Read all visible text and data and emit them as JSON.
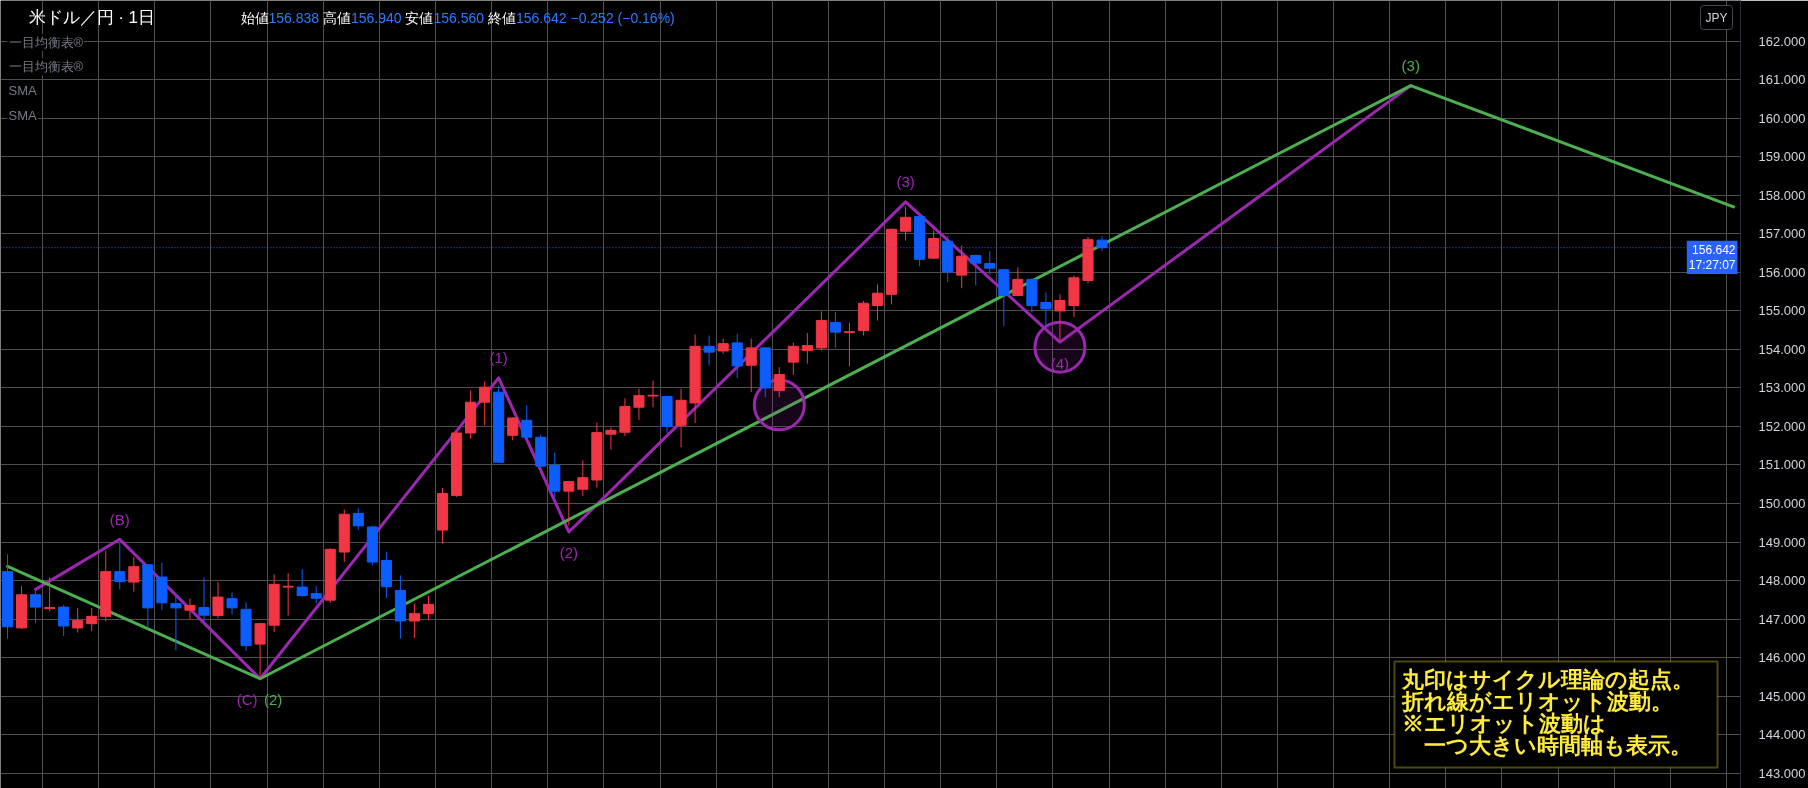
{
  "chart_data": {
    "type": "candlestick",
    "title": "米ドル／円 · 1日",
    "subtitle": "始値156.838 高値156.940 安値156.560 終値156.642 −0.252 (−0.16%)",
    "annotations": [
      "一目均衡表®",
      "一目均衡表®",
      "SMA",
      "SMA",
      "JPY",
      "丸印はサイクル理論の起点。",
      "折れ線がエリオット波動。",
      "※エリオット波動は",
      "　一つ大きい時間軸も表示。",
      {
        "text": "(B)",
        "y": 149.07
      },
      {
        "text": "(C)",
        "y": 145.45
      },
      {
        "text": "(1)",
        "y": 153.26
      },
      {
        "text": "(2)",
        "y": 149.26
      },
      {
        "text": "(3)",
        "y": 157.83
      },
      {
        "text": "(4)",
        "y": 154.19
      },
      {
        "text": "(2)",
        "y": 145.45
      },
      {
        "text": "(3)",
        "y": 160.85
      }
    ],
    "categories": [
      null,
      null,
      null,
      null,
      null,
      null,
      null,
      null,
      null,
      null,
      null,
      null,
      null,
      null,
      null,
      null,
      null,
      null,
      null,
      null,
      null,
      null,
      null,
      null,
      null,
      null,
      null,
      null,
      null,
      null,
      null,
      null,
      null,
      null,
      null,
      null,
      null,
      null,
      null,
      null,
      null,
      null,
      null,
      null,
      null,
      null,
      null,
      null,
      null,
      null,
      null,
      null,
      null,
      null,
      null,
      null,
      null,
      null,
      null,
      null,
      null,
      null,
      null,
      null,
      null,
      null,
      null,
      null,
      null,
      null,
      null,
      null,
      null,
      null,
      null,
      null,
      null,
      null,
      null,
      null,
      null,
      null,
      null,
      null,
      null,
      null,
      null,
      null,
      null,
      null,
      null,
      null,
      null,
      null,
      null,
      null,
      null,
      null,
      null,
      null,
      null,
      null,
      null,
      null,
      null,
      null,
      null,
      null,
      null,
      null,
      null,
      null,
      null,
      null,
      null,
      null,
      null,
      null,
      null,
      null,
      null,
      null,
      null,
      null
    ],
    "ohlc": [
      [
        148.23,
        148.68,
        146.49,
        146.8
      ],
      [
        146.77,
        147.85,
        146.74,
        147.63
      ],
      [
        147.63,
        147.75,
        146.89,
        147.31
      ],
      [
        147.27,
        148.08,
        147.2,
        147.3
      ],
      [
        147.31,
        147.37,
        146.56,
        146.82
      ],
      [
        146.77,
        147.29,
        146.65,
        146.96
      ],
      [
        146.88,
        147.29,
        146.69,
        147.07
      ],
      [
        147.07,
        148.77,
        146.94,
        148.23
      ],
      [
        148.23,
        148.98,
        147.77,
        147.97
      ],
      [
        147.96,
        148.61,
        147.71,
        148.36
      ],
      [
        148.41,
        148.43,
        146.75,
        147.29
      ],
      [
        148.09,
        148.46,
        147.24,
        147.42
      ],
      [
        147.4,
        147.65,
        146.19,
        147.29
      ],
      [
        147.23,
        147.53,
        147.0,
        147.35
      ],
      [
        147.3,
        148.08,
        146.91,
        147.1
      ],
      [
        147.09,
        147.96,
        147.02,
        147.57
      ],
      [
        147.53,
        147.69,
        147.12,
        147.29
      ],
      [
        147.25,
        147.43,
        146.17,
        146.31
      ],
      [
        146.35,
        146.9,
        145.45,
        146.88
      ],
      [
        146.84,
        148.16,
        146.66,
        147.9
      ],
      [
        147.83,
        148.19,
        147.09,
        147.85
      ],
      [
        147.83,
        148.29,
        147.58,
        147.61
      ],
      [
        147.66,
        147.85,
        147.4,
        147.54
      ],
      [
        147.49,
        148.84,
        147.42,
        148.81
      ],
      [
        148.74,
        149.84,
        148.48,
        149.72
      ],
      [
        149.74,
        149.87,
        149.32,
        149.42
      ],
      [
        149.39,
        149.42,
        148.39,
        148.48
      ],
      [
        148.52,
        148.75,
        147.55,
        147.84
      ],
      [
        147.74,
        148.13,
        146.49,
        146.95
      ],
      [
        146.95,
        147.4,
        146.51,
        147.14
      ],
      [
        147.14,
        147.6,
        146.97,
        147.38
      ],
      [
        149.31,
        150.4,
        148.96,
        150.26
      ],
      [
        150.21,
        151.85,
        150.17,
        151.83
      ],
      [
        151.83,
        152.94,
        151.68,
        152.63
      ],
      [
        152.63,
        153.17,
        152.03,
        153.02
      ],
      [
        152.89,
        153.07,
        151.05,
        151.07
      ],
      [
        151.77,
        152.24,
        151.64,
        152.22
      ],
      [
        152.16,
        152.55,
        151.7,
        151.72
      ],
      [
        151.72,
        151.79,
        150.95,
        150.97
      ],
      [
        150.99,
        151.32,
        150.16,
        150.32
      ],
      [
        150.32,
        150.59,
        149.43,
        150.57
      ],
      [
        150.37,
        151.12,
        150.19,
        150.67
      ],
      [
        150.61,
        152.1,
        150.41,
        151.84
      ],
      [
        151.8,
        151.97,
        151.4,
        151.9
      ],
      [
        151.85,
        152.73,
        151.75,
        152.52
      ],
      [
        152.5,
        152.98,
        152.17,
        152.8
      ],
      [
        152.79,
        153.19,
        152.5,
        152.81
      ],
      [
        152.78,
        152.8,
        151.83,
        152.0
      ],
      [
        152.03,
        152.98,
        151.46,
        152.68
      ],
      [
        152.61,
        154.39,
        152.09,
        154.08
      ],
      [
        154.08,
        154.36,
        153.58,
        153.93
      ],
      [
        153.96,
        154.28,
        153.89,
        154.15
      ],
      [
        154.17,
        154.41,
        153.26,
        153.57
      ],
      [
        153.59,
        154.28,
        152.89,
        154.04
      ],
      [
        154.04,
        154.06,
        152.76,
        153.0
      ],
      [
        152.93,
        153.54,
        152.76,
        153.35
      ],
      [
        153.67,
        154.18,
        153.34,
        154.08
      ],
      [
        153.97,
        154.43,
        153.63,
        154.1
      ],
      [
        154.04,
        154.99,
        153.97,
        154.75
      ],
      [
        154.7,
        154.97,
        154.04,
        154.45
      ],
      [
        154.44,
        154.69,
        153.56,
        154.46
      ],
      [
        154.49,
        155.26,
        154.36,
        155.2
      ],
      [
        155.14,
        155.69,
        154.75,
        155.46
      ],
      [
        155.43,
        157.14,
        155.17,
        157.12
      ],
      [
        157.07,
        157.71,
        156.83,
        157.43
      ],
      [
        157.45,
        157.47,
        156.16,
        156.34
      ],
      [
        156.37,
        157.09,
        156.35,
        156.88
      ],
      [
        156.81,
        156.94,
        155.75,
        156.01
      ],
      [
        155.93,
        156.7,
        155.59,
        156.42
      ],
      [
        156.44,
        156.46,
        155.66,
        156.24
      ],
      [
        156.23,
        156.55,
        155.94,
        156.11
      ],
      [
        156.07,
        156.09,
        154.6,
        155.4
      ],
      [
        155.4,
        156.13,
        155.38,
        155.82
      ],
      [
        155.82,
        155.84,
        154.96,
        155.14
      ],
      [
        155.22,
        155.48,
        154.58,
        155.05
      ],
      [
        155.0,
        155.43,
        154.23,
        155.27
      ],
      [
        155.14,
        155.92,
        154.84,
        155.86
      ],
      [
        155.79,
        156.92,
        155.71,
        156.85
      ],
      [
        156.838,
        156.94,
        156.56,
        156.642
      ],
      null,
      null,
      null,
      null,
      null,
      null,
      null,
      null,
      null,
      null,
      null,
      null,
      null,
      null,
      null,
      null,
      null,
      null,
      null,
      null,
      null,
      null,
      null,
      null,
      null,
      null,
      null,
      null,
      null,
      null,
      null,
      null,
      null,
      null,
      null,
      null,
      null,
      null,
      null,
      null,
      null,
      null,
      null,
      null,
      null
    ],
    "colors": [
      "#0d5eff",
      "#f23645",
      "#0d5eff",
      "#f23645",
      "#0d5eff",
      "#f23645",
      "#f23645",
      "#f23645",
      "#0d5eff",
      "#f23645",
      "#0d5eff",
      "#0d5eff",
      "#0d5eff",
      "#f23645",
      "#0d5eff",
      "#f23645",
      "#0d5eff",
      "#0d5eff",
      "#f23645",
      "#f23645",
      "#f23645",
      "#0d5eff",
      "#0d5eff",
      "#f23645",
      "#f23645",
      "#0d5eff",
      "#0d5eff",
      "#0d5eff",
      "#0d5eff",
      "#f23645",
      "#f23645",
      "#f23645",
      "#f23645",
      "#f23645",
      "#f23645",
      "#0d5eff",
      "#f23645",
      "#0d5eff",
      "#0d5eff",
      "#0d5eff",
      "#f23645",
      "#f23645",
      "#f23645",
      "#f23645",
      "#f23645",
      "#f23645",
      "#f23645",
      "#0d5eff",
      "#f23645",
      "#f23645",
      "#0d5eff",
      "#f23645",
      "#0d5eff",
      "#f23645",
      "#0d5eff",
      "#f23645",
      "#f23645",
      "#f23645",
      "#f23645",
      "#0d5eff",
      "#f23645",
      "#f23645",
      "#f23645",
      "#f23645",
      "#f23645",
      "#0d5eff",
      "#f23645",
      "#0d5eff",
      "#f23645",
      "#0d5eff",
      "#0d5eff",
      "#0d5eff",
      "#f23645",
      "#0d5eff",
      "#0d5eff",
      "#f23645",
      "#f23645",
      "#f23645",
      "#0d5eff",
      null,
      null,
      null,
      null,
      null,
      null,
      null,
      null,
      null,
      null,
      null,
      null,
      null,
      null,
      null,
      null,
      null,
      null,
      null,
      null,
      null,
      null,
      null,
      null,
      null,
      null,
      null,
      null,
      null,
      null,
      null,
      null,
      null,
      null,
      null,
      null,
      null,
      null,
      null,
      null,
      null,
      null,
      null,
      null,
      null
    ],
    "series": [
      {
        "type": "line",
        "color": "#9c27b0",
        "values": [
          null,
          null,
          147.77,
          null,
          null,
          null,
          null,
          null,
          149.07,
          null,
          null,
          null,
          null,
          null,
          null,
          null,
          null,
          null,
          145.45,
          null,
          null,
          null,
          null,
          null,
          null,
          null,
          null,
          null,
          null,
          null,
          null,
          null,
          null,
          null,
          null,
          153.26,
          null,
          null,
          null,
          null,
          149.26,
          null,
          null,
          null,
          null,
          null,
          null,
          null,
          null,
          null,
          null,
          null,
          null,
          null,
          null,
          null,
          null,
          null,
          null,
          null,
          null,
          null,
          null,
          null,
          157.83,
          null,
          null,
          null,
          null,
          null,
          null,
          null,
          null,
          null,
          null,
          154.19,
          null,
          null,
          null,
          null,
          null,
          null,
          null,
          null,
          null,
          null,
          null,
          null,
          null,
          null,
          null,
          null,
          null,
          null,
          null,
          null,
          null,
          null,
          null,
          null,
          160.85,
          null,
          null,
          null,
          null,
          null,
          null,
          null,
          null,
          null,
          null,
          null,
          null,
          null,
          null,
          null,
          null,
          null,
          null,
          null,
          null,
          null,
          null,
          null
        ]
      },
      {
        "type": "line",
        "color": "#4caf50",
        "values": [
          148.37,
          null,
          null,
          null,
          null,
          null,
          null,
          null,
          null,
          null,
          null,
          null,
          null,
          null,
          null,
          null,
          null,
          null,
          145.45,
          null,
          null,
          null,
          null,
          null,
          null,
          null,
          null,
          null,
          null,
          null,
          null,
          null,
          null,
          null,
          null,
          null,
          null,
          null,
          null,
          null,
          null,
          null,
          null,
          null,
          null,
          null,
          null,
          null,
          null,
          null,
          null,
          null,
          null,
          null,
          null,
          null,
          null,
          null,
          null,
          null,
          null,
          null,
          null,
          null,
          null,
          null,
          null,
          null,
          null,
          null,
          null,
          null,
          null,
          null,
          null,
          null,
          null,
          null,
          null,
          null,
          null,
          null,
          null,
          null,
          null,
          null,
          null,
          null,
          null,
          null,
          null,
          null,
          null,
          null,
          null,
          null,
          null,
          null,
          null,
          null,
          160.85,
          null,
          null,
          null,
          null,
          null,
          null,
          null,
          null,
          null,
          null,
          null,
          null,
          null,
          null,
          null,
          null,
          null,
          null,
          null,
          null,
          null,
          null,
          157.7
        ]
      },
      {
        "type": "scatter",
        "marker": "circle",
        "color": "#9c27b0",
        "values": [
          null,
          null,
          null,
          null,
          null,
          null,
          null,
          null,
          null,
          null,
          null,
          null,
          null,
          null,
          null,
          null,
          null,
          null,
          null,
          null,
          null,
          null,
          null,
          null,
          null,
          null,
          null,
          null,
          null,
          null,
          null,
          null,
          null,
          null,
          null,
          null,
          null,
          null,
          null,
          null,
          null,
          null,
          null,
          null,
          null,
          null,
          null,
          null,
          null,
          null,
          null,
          null,
          null,
          null,
          null,
          152.56,
          null,
          null,
          null,
          null,
          null,
          null,
          null,
          null,
          null,
          null,
          null,
          null,
          null,
          null,
          null,
          null,
          null,
          null,
          null,
          154.06,
          null,
          null,
          null,
          null,
          null,
          null,
          null,
          null,
          null,
          null,
          null,
          null,
          null,
          null,
          null,
          null,
          null,
          null,
          null,
          null,
          null,
          null,
          null,
          null,
          null,
          null,
          null,
          null,
          null,
          null,
          null,
          null,
          null,
          null,
          null,
          null,
          null,
          null,
          null,
          null,
          null,
          null,
          null,
          null,
          null,
          null,
          null,
          null
        ]
      }
    ],
    "ref_lines": [
      {
        "axis": "y",
        "value": 156.642,
        "label": "156.642\n17:27:07",
        "color": "#2962ff",
        "line_style": "dotted"
      }
    ],
    "ylim": [
      142.6,
      163.06
    ],
    "yticks": [
      {
        "value": 143,
        "label": "143.000"
      },
      {
        "value": 144,
        "label": "144.000"
      },
      {
        "value": 145,
        "label": "145.000"
      },
      {
        "value": 146,
        "label": "146.000"
      },
      {
        "value": 147,
        "label": "147.000"
      },
      {
        "value": 148,
        "label": "148.000"
      },
      {
        "value": 149,
        "label": "149.000"
      },
      {
        "value": 150,
        "label": "150.000"
      },
      {
        "value": 151,
        "label": "151.000"
      },
      {
        "value": 152,
        "label": "152.000"
      },
      {
        "value": 153,
        "label": "153.000"
      },
      {
        "value": 154,
        "label": "154.000"
      },
      {
        "value": 155,
        "label": "155.000"
      },
      {
        "value": 156,
        "label": "156.000"
      },
      {
        "value": 157,
        "label": "157.000"
      },
      {
        "value": 158,
        "label": "158.000"
      },
      {
        "value": 159,
        "label": "159.000"
      },
      {
        "value": 160,
        "label": "160.000"
      },
      {
        "value": 161,
        "label": "161.000"
      },
      {
        "value": 162,
        "label": "162.000"
      }
    ],
    "grid": true,
    "tick_labels": "y"
  }
}
